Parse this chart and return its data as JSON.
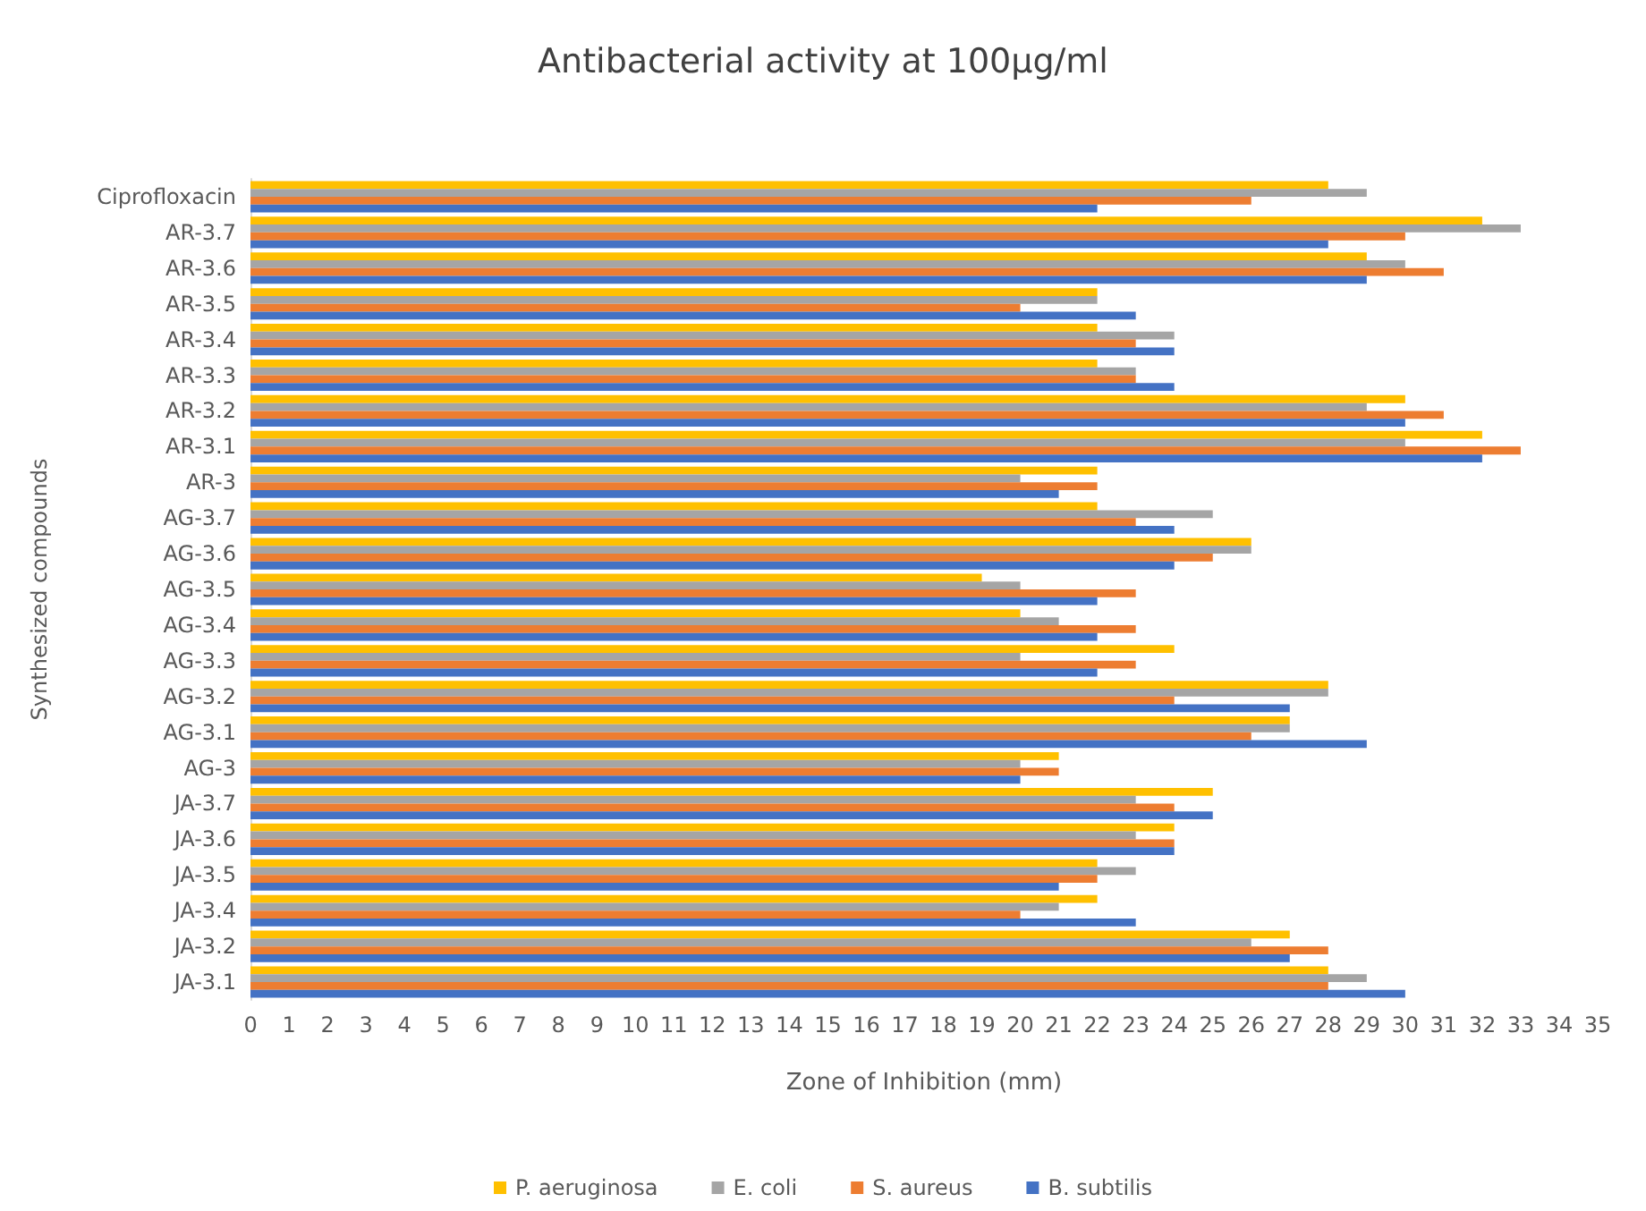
{
  "chart_data": {
    "type": "bar",
    "orientation": "horizontal",
    "title": "Antibacterial activity at 100µg/ml",
    "xlabel": "Zone of Inhibition (mm)",
    "ylabel": "Synthesized compounds",
    "categories": [
      "Ciprofloxacin",
      "AR-3.7",
      "AR-3.6",
      "AR-3.5",
      "AR-3.4",
      "AR-3.3",
      "AR-3.2",
      "AR-3.1",
      "AR-3",
      "AG-3.7",
      "AG-3.6",
      "AG-3.5",
      "AG-3.4",
      "AG-3.3",
      "AG-3.2",
      "AG-3.1",
      "AG-3",
      "JA-3.7",
      "JA-3.6",
      "JA-3.5",
      "JA-3.4",
      "JA-3.2",
      "JA-3.1"
    ],
    "series": [
      {
        "name": "P. aeruginosa",
        "color": "#ffc000",
        "values": [
          28,
          32,
          29,
          22,
          22,
          22,
          30,
          32,
          22,
          22,
          26,
          19,
          20,
          24,
          28,
          27,
          21,
          25,
          24,
          22,
          22,
          27,
          28
        ]
      },
      {
        "name": "E. coli",
        "color": "#a5a5a5",
        "values": [
          29,
          33,
          30,
          22,
          24,
          23,
          29,
          30,
          20,
          25,
          26,
          20,
          21,
          20,
          28,
          27,
          20,
          23,
          23,
          23,
          21,
          26,
          29
        ]
      },
      {
        "name": "S. aureus",
        "color": "#ed7d31",
        "values": [
          26,
          30,
          31,
          20,
          23,
          23,
          31,
          33,
          22,
          23,
          25,
          23,
          23,
          23,
          24,
          26,
          21,
          24,
          24,
          22,
          20,
          28,
          28
        ]
      },
      {
        "name": "B. subtilis",
        "color": "#4472c4",
        "values": [
          22,
          28,
          29,
          23,
          24,
          24,
          30,
          32,
          21,
          24,
          24,
          22,
          22,
          22,
          27,
          29,
          20,
          25,
          24,
          21,
          23,
          27,
          30
        ]
      }
    ],
    "xlim": [
      0,
      35
    ],
    "xticks": [
      0,
      1,
      2,
      3,
      4,
      5,
      6,
      7,
      8,
      9,
      10,
      11,
      12,
      13,
      14,
      15,
      16,
      17,
      18,
      19,
      20,
      21,
      22,
      23,
      24,
      25,
      26,
      27,
      28,
      29,
      30,
      31,
      32,
      33,
      34,
      35
    ],
    "grid": false,
    "legend": "bottom"
  }
}
